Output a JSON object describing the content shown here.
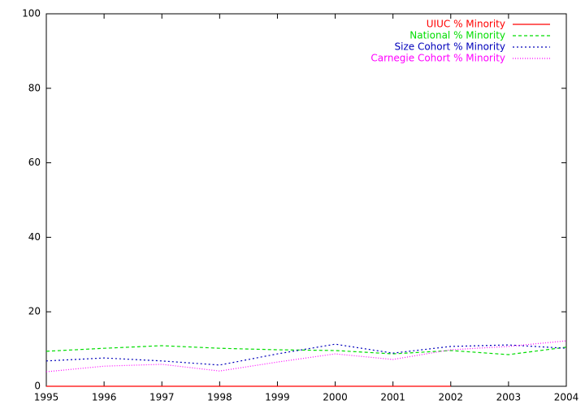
{
  "chart_data": {
    "type": "line",
    "x": [
      1995,
      1996,
      1997,
      1998,
      1999,
      2000,
      2001,
      2002,
      2003,
      2004
    ],
    "xlim": [
      1995,
      2004
    ],
    "xticks": [
      1995,
      1996,
      1997,
      1998,
      1999,
      2000,
      2001,
      2002,
      2003,
      2004
    ],
    "ylim": [
      0,
      100
    ],
    "yticks": [
      0,
      20,
      40,
      60,
      80,
      100
    ],
    "grid": false,
    "legend": "top-right",
    "series": [
      {
        "name": "UIUC % Minority",
        "color": "#ff0000",
        "dash": "solid",
        "values": [
          0,
          0,
          0,
          0,
          0,
          0,
          0,
          0,
          null,
          null
        ]
      },
      {
        "name": "National % Minority",
        "color": "#00dd00",
        "dash": "dashed",
        "values": [
          9.4,
          10.2,
          10.9,
          10.2,
          9.8,
          9.6,
          8.7,
          9.6,
          8.5,
          10.5
        ]
      },
      {
        "name": "Size Cohort % Minority",
        "color": "#0000bb",
        "dash": "dotted",
        "values": [
          6.8,
          7.6,
          6.8,
          5.7,
          8.7,
          11.3,
          8.9,
          10.7,
          11.1,
          10.2
        ]
      },
      {
        "name": "Carnegie Cohort % Minority",
        "color": "#ff00ff",
        "dash": "fine-dotted",
        "values": [
          3.9,
          5.4,
          5.9,
          4.1,
          6.5,
          8.7,
          7.2,
          9.8,
          10.7,
          12.2
        ]
      }
    ]
  }
}
